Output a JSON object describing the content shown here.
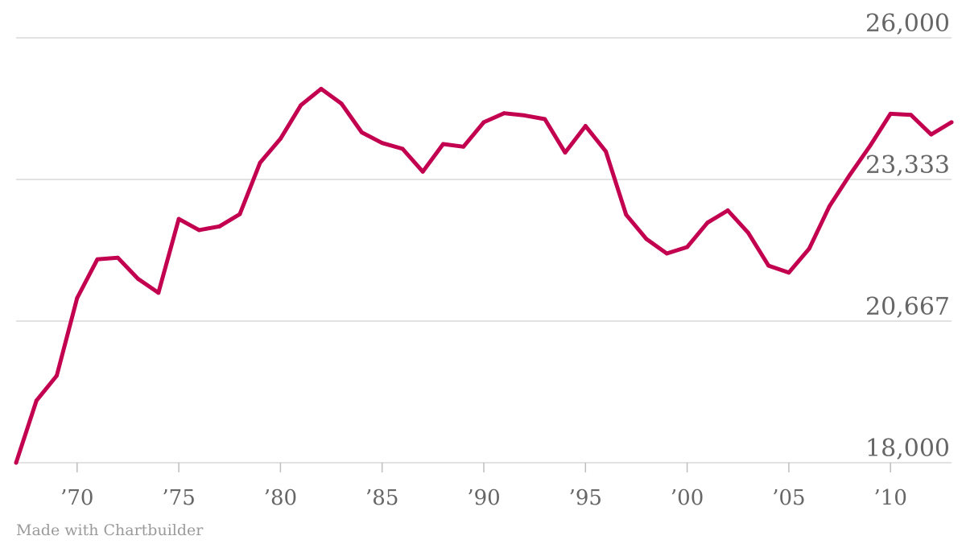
{
  "credit": "Made with Chartbuilder",
  "colors": {
    "line": "#c2004f",
    "grid": "#d9d9d9",
    "text": "#666666"
  },
  "chart_data": {
    "type": "line",
    "title": "",
    "xlabel": "",
    "ylabel": "",
    "xlim": [
      1967,
      2013
    ],
    "ylim": [
      18000,
      26000
    ],
    "grid": true,
    "y_ticks": [
      {
        "value": 26000,
        "label": "26,000"
      },
      {
        "value": 23333,
        "label": "23,333"
      },
      {
        "value": 20667,
        "label": "20,667"
      },
      {
        "value": 18000,
        "label": "18,000"
      }
    ],
    "x_ticks": [
      {
        "value": 1970,
        "label": "’70"
      },
      {
        "value": 1975,
        "label": "’75"
      },
      {
        "value": 1980,
        "label": "’80"
      },
      {
        "value": 1985,
        "label": "’85"
      },
      {
        "value": 1990,
        "label": "’90"
      },
      {
        "value": 1995,
        "label": "’95"
      },
      {
        "value": 2000,
        "label": "’00"
      },
      {
        "value": 2005,
        "label": "’05"
      },
      {
        "value": 2010,
        "label": "’10"
      }
    ],
    "series": [
      {
        "x": [
          1967,
          1968,
          1969,
          1970,
          1971,
          1972,
          1973,
          1974,
          1975,
          1976,
          1977,
          1978,
          1979,
          1980,
          1981,
          1982,
          1983,
          1984,
          1985,
          1986,
          1987,
          1988,
          1989,
          1990,
          1991,
          1992,
          1993,
          1994,
          1995,
          1996,
          1997,
          1998,
          1999,
          2000,
          2001,
          2002,
          2003,
          2004,
          2005,
          2006,
          2007,
          2008,
          2009,
          2010,
          2011,
          2012,
          2013
        ],
        "values": [
          18000,
          19170,
          19640,
          21100,
          21830,
          21860,
          21460,
          21200,
          22590,
          22380,
          22450,
          22680,
          23650,
          24100,
          24730,
          25040,
          24760,
          24220,
          24020,
          23910,
          23480,
          24000,
          23950,
          24410,
          24580,
          24540,
          24470,
          23840,
          24340,
          23860,
          22670,
          22210,
          21940,
          22060,
          22520,
          22750,
          22330,
          21710,
          21580,
          22030,
          22830,
          23420,
          23970,
          24570,
          24550,
          24180,
          24410
        ]
      }
    ]
  }
}
